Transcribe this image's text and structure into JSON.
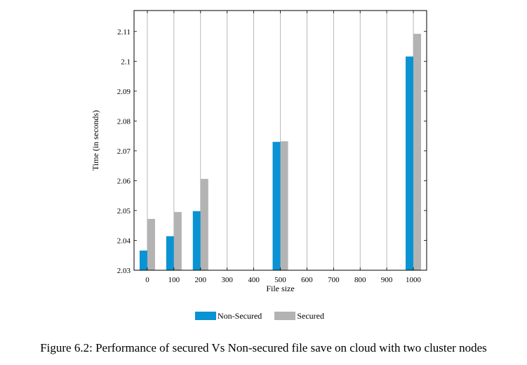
{
  "chart_data": {
    "type": "bar",
    "title": "",
    "xlabel": "File size",
    "ylabel": "Time (in seconds)",
    "x_ticks": [
      "0",
      "100",
      "200",
      "300",
      "400",
      "500",
      "600",
      "700",
      "800",
      "900",
      "1000"
    ],
    "y_ticks": [
      "2.03",
      "2.04",
      "2.05",
      "2.06",
      "2.07",
      "2.08",
      "2.09",
      "2.1",
      "2.11"
    ],
    "ylim": [
      2.03,
      2.117
    ],
    "xlim": [
      -50,
      1050
    ],
    "grid": "vertical",
    "legend_position": "bottom",
    "x": [
      0,
      100,
      200,
      500,
      1000
    ],
    "series": [
      {
        "name": "Non-Secured",
        "color": "#0a93d3",
        "values": [
          2.0366,
          2.0414,
          2.0498,
          2.073,
          2.1016
        ]
      },
      {
        "name": "Secured",
        "color": "#b3b3b3",
        "values": [
          2.0472,
          2.0495,
          2.0606,
          2.0732,
          2.1092
        ]
      }
    ]
  },
  "caption": "Figure 6.2: Performance of secured Vs Non-secured file save on cloud with two cluster nodes"
}
